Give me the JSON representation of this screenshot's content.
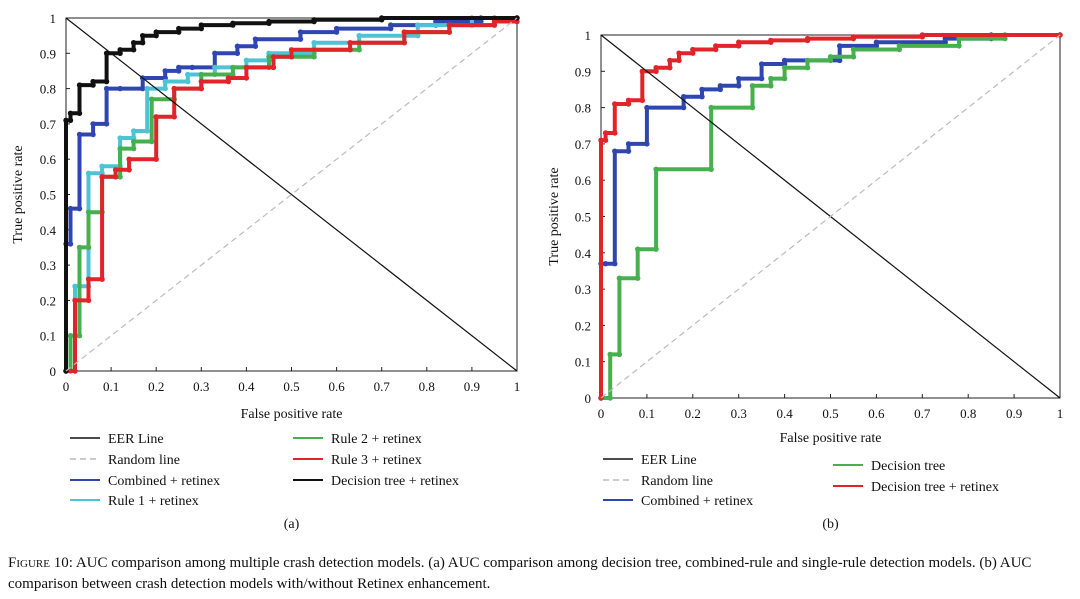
{
  "caption": {
    "figure_label": "Figure 10:",
    "text": "AUC comparison among multiple crash detection models. (a) AUC comparison among decision tree, combined-rule and single-rule detection models. (b) AUC comparison between crash detection models with/without Retinex enhancement."
  },
  "chart_data": [
    {
      "type": "line",
      "panel_label": "(a)",
      "title": "",
      "xlabel": "False positive rate",
      "ylabel": "True positive rate",
      "xlim": [
        0,
        1
      ],
      "ylim": [
        0,
        1
      ],
      "xticks": [
        "0",
        "0.1",
        "0.2",
        "0.3",
        "0.4",
        "0.5",
        "0.6",
        "0.7",
        "0.8",
        "0.9",
        "1"
      ],
      "yticks": [
        "0",
        "0.1",
        "0.2",
        "0.3",
        "0.4",
        "0.5",
        "0.6",
        "0.7",
        "0.8",
        "0.9",
        "1"
      ],
      "grid": false,
      "legend_position": "below plot, two columns",
      "series": [
        {
          "name": "EER Line",
          "color": "#111111",
          "style": "thin",
          "x": [
            0,
            1
          ],
          "y": [
            1,
            0
          ]
        },
        {
          "name": "Random line",
          "color": "#bbbbbb",
          "style": "dashed",
          "x": [
            0,
            1
          ],
          "y": [
            0,
            1
          ]
        },
        {
          "name": "Combined + retinex",
          "color": "#2f46b0",
          "style": "thick-step",
          "x": [
            0,
            0,
            0.01,
            0.01,
            0.03,
            0.03,
            0.06,
            0.06,
            0.09,
            0.09,
            0.12,
            0.17,
            0.17,
            0.22,
            0.22,
            0.25,
            0.25,
            0.28,
            0.33,
            0.33,
            0.38,
            0.38,
            0.42,
            0.42,
            0.52,
            0.52,
            0.6,
            0.6,
            0.72,
            0.72,
            0.82,
            0.82,
            0.92,
            0.92,
            1
          ],
          "y": [
            0,
            0.36,
            0.36,
            0.46,
            0.46,
            0.67,
            0.67,
            0.7,
            0.7,
            0.8,
            0.8,
            0.8,
            0.83,
            0.83,
            0.85,
            0.85,
            0.86,
            0.86,
            0.86,
            0.9,
            0.9,
            0.92,
            0.92,
            0.94,
            0.94,
            0.96,
            0.96,
            0.97,
            0.97,
            0.98,
            0.98,
            0.99,
            0.99,
            1.0,
            1.0
          ]
        },
        {
          "name": "Rule 1 + retinex",
          "color": "#4ec3d6",
          "style": "thick-step",
          "x": [
            0,
            0.02,
            0.02,
            0.05,
            0.05,
            0.08,
            0.08,
            0.12,
            0.12,
            0.15,
            0.15,
            0.18,
            0.18,
            0.22,
            0.22,
            0.27,
            0.27,
            0.33,
            0.33,
            0.4,
            0.4,
            0.45,
            0.45,
            0.55,
            0.55,
            0.65,
            0.65,
            0.78,
            0.78,
            0.9,
            0.9,
            1
          ],
          "y": [
            0,
            0,
            0.24,
            0.24,
            0.56,
            0.56,
            0.58,
            0.58,
            0.66,
            0.66,
            0.68,
            0.68,
            0.8,
            0.8,
            0.82,
            0.82,
            0.84,
            0.84,
            0.86,
            0.86,
            0.88,
            0.88,
            0.9,
            0.9,
            0.93,
            0.93,
            0.95,
            0.95,
            0.98,
            0.98,
            1.0,
            1.0
          ]
        },
        {
          "name": "Rule 2 + retinex",
          "color": "#46b04f",
          "style": "thick-step",
          "x": [
            0,
            0.01,
            0.01,
            0.03,
            0.03,
            0.05,
            0.05,
            0.08,
            0.08,
            0.12,
            0.12,
            0.15,
            0.15,
            0.19,
            0.19,
            0.24,
            0.24,
            0.3,
            0.3,
            0.37,
            0.37,
            0.45,
            0.45,
            0.55,
            0.55,
            0.65,
            0.65,
            0.75,
            0.75,
            0.85,
            0.85,
            0.95,
            0.95,
            1
          ],
          "y": [
            0,
            0,
            0.1,
            0.1,
            0.35,
            0.35,
            0.45,
            0.45,
            0.55,
            0.55,
            0.63,
            0.63,
            0.65,
            0.65,
            0.77,
            0.77,
            0.8,
            0.8,
            0.84,
            0.84,
            0.86,
            0.86,
            0.89,
            0.89,
            0.91,
            0.91,
            0.93,
            0.93,
            0.96,
            0.96,
            0.98,
            0.98,
            1.0,
            1.0
          ]
        },
        {
          "name": "Rule 3 + retinex",
          "color": "#e0242a",
          "style": "thick-step",
          "x": [
            0,
            0.02,
            0.02,
            0.05,
            0.05,
            0.08,
            0.08,
            0.11,
            0.11,
            0.14,
            0.14,
            0.2,
            0.2,
            0.24,
            0.24,
            0.3,
            0.3,
            0.36,
            0.36,
            0.4,
            0.4,
            0.46,
            0.46,
            0.5,
            0.5,
            0.63,
            0.63,
            0.75,
            0.75,
            0.85,
            0.85,
            0.95,
            0.95,
            1
          ],
          "y": [
            0,
            0,
            0.2,
            0.2,
            0.26,
            0.26,
            0.55,
            0.55,
            0.57,
            0.57,
            0.6,
            0.6,
            0.72,
            0.72,
            0.8,
            0.8,
            0.82,
            0.82,
            0.83,
            0.83,
            0.86,
            0.86,
            0.89,
            0.89,
            0.91,
            0.91,
            0.93,
            0.93,
            0.96,
            0.96,
            0.98,
            0.98,
            0.99,
            0.99
          ]
        },
        {
          "name": "Decision tree + retinex",
          "color": "#111111",
          "style": "thick-step",
          "x": [
            0,
            0,
            0.01,
            0.01,
            0.03,
            0.03,
            0.06,
            0.06,
            0.09,
            0.09,
            0.12,
            0.12,
            0.15,
            0.15,
            0.17,
            0.17,
            0.2,
            0.2,
            0.25,
            0.25,
            0.3,
            0.3,
            0.37,
            0.37,
            0.45,
            0.45,
            0.55,
            0.55,
            0.7,
            0.7,
            1
          ],
          "y": [
            0,
            0.71,
            0.71,
            0.73,
            0.73,
            0.81,
            0.81,
            0.82,
            0.82,
            0.9,
            0.9,
            0.91,
            0.91,
            0.93,
            0.93,
            0.95,
            0.95,
            0.96,
            0.96,
            0.97,
            0.97,
            0.98,
            0.98,
            0.985,
            0.985,
            0.99,
            0.99,
            0.995,
            0.995,
            1.0,
            1.0
          ]
        }
      ]
    },
    {
      "type": "line",
      "panel_label": "(b)",
      "title": "",
      "xlabel": "False positive rate",
      "ylabel": "True positive rate",
      "xlim": [
        0,
        1
      ],
      "ylim": [
        0,
        1
      ],
      "xticks": [
        "0",
        "0.1",
        "0.2",
        "0.3",
        "0.4",
        "0.5",
        "0.6",
        "0.7",
        "0.8",
        "0.9",
        "1"
      ],
      "yticks": [
        "0",
        "0.1",
        "0.2",
        "0.3",
        "0.4",
        "0.5",
        "0.6",
        "0.7",
        "0.8",
        "0.9",
        "1"
      ],
      "grid": false,
      "legend_position": "below plot, two columns",
      "series": [
        {
          "name": "EER Line",
          "color": "#111111",
          "style": "thin",
          "x": [
            0,
            1
          ],
          "y": [
            1,
            0
          ]
        },
        {
          "name": "Random line",
          "color": "#bbbbbb",
          "style": "dashed",
          "x": [
            0,
            1
          ],
          "y": [
            0,
            1
          ]
        },
        {
          "name": "Combined + retinex",
          "color": "#2f46b0",
          "style": "thick-step",
          "x": [
            0,
            0,
            0.01,
            0.01,
            0.03,
            0.03,
            0.06,
            0.06,
            0.1,
            0.1,
            0.18,
            0.18,
            0.22,
            0.22,
            0.26,
            0.26,
            0.3,
            0.3,
            0.35,
            0.35,
            0.4,
            0.4,
            0.52,
            0.52,
            0.6,
            0.6,
            0.75,
            0.75,
            0.85,
            0.85,
            1
          ],
          "y": [
            0,
            0.37,
            0.37,
            0.37,
            0.37,
            0.68,
            0.68,
            0.7,
            0.7,
            0.8,
            0.8,
            0.83,
            0.83,
            0.85,
            0.85,
            0.86,
            0.86,
            0.88,
            0.88,
            0.92,
            0.92,
            0.93,
            0.93,
            0.97,
            0.97,
            0.98,
            0.98,
            0.99,
            0.99,
            1.0,
            1.0
          ]
        },
        {
          "name": "Decision tree",
          "color": "#46b04f",
          "style": "thick-step",
          "x": [
            0,
            0.02,
            0.02,
            0.04,
            0.04,
            0.08,
            0.08,
            0.12,
            0.12,
            0.24,
            0.24,
            0.33,
            0.33,
            0.37,
            0.37,
            0.4,
            0.4,
            0.45,
            0.45,
            0.5,
            0.5,
            0.55,
            0.55,
            0.65,
            0.65,
            0.78,
            0.78,
            0.88,
            0.88,
            1
          ],
          "y": [
            0,
            0,
            0.12,
            0.12,
            0.33,
            0.33,
            0.41,
            0.41,
            0.63,
            0.63,
            0.8,
            0.8,
            0.86,
            0.86,
            0.88,
            0.88,
            0.91,
            0.91,
            0.93,
            0.93,
            0.94,
            0.94,
            0.96,
            0.96,
            0.97,
            0.97,
            0.99,
            0.99,
            1.0,
            1.0
          ]
        },
        {
          "name": "Decision tree + retinex",
          "color": "#e0242a",
          "style": "thick-step",
          "x": [
            0,
            0,
            0.01,
            0.01,
            0.03,
            0.03,
            0.06,
            0.06,
            0.09,
            0.09,
            0.12,
            0.12,
            0.15,
            0.15,
            0.17,
            0.17,
            0.2,
            0.2,
            0.25,
            0.25,
            0.3,
            0.3,
            0.37,
            0.37,
            0.45,
            0.45,
            0.55,
            0.55,
            0.7,
            0.7,
            1
          ],
          "y": [
            0,
            0.71,
            0.71,
            0.73,
            0.73,
            0.81,
            0.81,
            0.82,
            0.82,
            0.9,
            0.9,
            0.91,
            0.91,
            0.93,
            0.93,
            0.95,
            0.95,
            0.96,
            0.96,
            0.97,
            0.97,
            0.98,
            0.98,
            0.985,
            0.985,
            0.99,
            0.99,
            0.995,
            0.995,
            1.0,
            1.0
          ]
        }
      ]
    }
  ]
}
